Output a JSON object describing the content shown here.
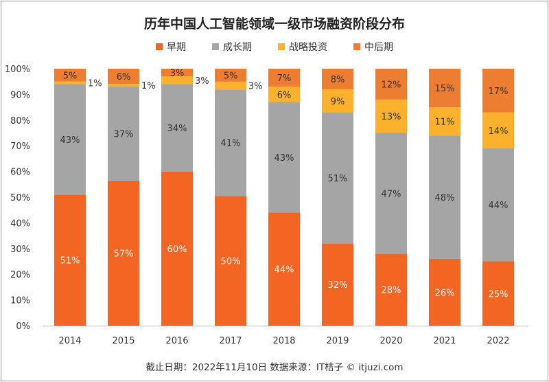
{
  "chart_data": {
    "type": "bar",
    "stacked": true,
    "title": "历年中国人工智能领域一级市场融资阶段分布",
    "categories": [
      "2014",
      "2015",
      "2016",
      "2017",
      "2018",
      "2019",
      "2020",
      "2021",
      "2022"
    ],
    "series": [
      {
        "name": "早期",
        "color": "#F26522",
        "values": [
          51,
          57,
          60,
          50,
          44,
          32,
          28,
          26,
          25
        ]
      },
      {
        "name": "成长期",
        "color": "#A5A5A5",
        "values": [
          43,
          37,
          34,
          41,
          43,
          51,
          47,
          48,
          44
        ]
      },
      {
        "name": "战略投资",
        "color": "#FBB12B",
        "values": [
          1,
          1,
          3,
          3,
          6,
          9,
          13,
          11,
          14
        ]
      },
      {
        "name": "中后期",
        "color": "#ED7D31",
        "values": [
          5,
          6,
          3,
          5,
          7,
          8,
          12,
          15,
          17
        ]
      }
    ],
    "yticks": [
      "0%",
      "10%",
      "20%",
      "30%",
      "40%",
      "50%",
      "60%",
      "70%",
      "80%",
      "90%",
      "100%"
    ],
    "ylim": [
      0,
      100
    ],
    "legend_position": "top",
    "grid": false
  },
  "footer": "截止日期：2022年11月10日     数据来源：IT桔子 © itjuzi.com"
}
